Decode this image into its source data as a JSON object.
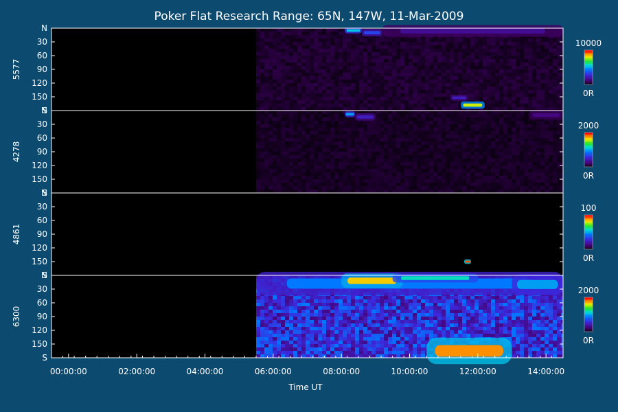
{
  "title": "Poker Flat Research Range: 65N, 147W, 11-Mar-2009",
  "xlabel": "Time UT",
  "colors": {
    "background": "#0d4a70",
    "plot_background": "#000000",
    "separator": "#ffffff"
  },
  "chart_data": {
    "type": "heatmap",
    "title": "Poker Flat Research Range: 65N, 147W, 11-Mar-2009",
    "xlabel": "Time UT",
    "x_ticks": [
      "00:00:00",
      "02:00:00",
      "04:00:00",
      "06:00:00",
      "08:00:00",
      "10:00:00",
      "12:00:00",
      "14:00:00"
    ],
    "x_tick_hours": [
      0,
      2,
      4,
      6,
      8,
      10,
      12,
      14
    ],
    "xlim_hours": [
      -0.5,
      14.5
    ],
    "data_start_hour": 5.5,
    "y_ticks": [
      "N",
      "30",
      "60",
      "90",
      "120",
      "150",
      "S"
    ],
    "y_tick_values": [
      0,
      30,
      60,
      90,
      120,
      150,
      180
    ],
    "ylim": [
      0,
      180
    ],
    "panels": [
      {
        "wavelength": "5577",
        "colorbar": {
          "max": "10000",
          "min": "0R",
          "max_value": 10000
        },
        "background_level": 0.05,
        "features": [
          {
            "t_start": 8.1,
            "t_end": 8.6,
            "y_center": 5,
            "y_width": 4,
            "level": 0.55
          },
          {
            "t_start": 8.6,
            "t_end": 9.2,
            "y_center": 10,
            "y_width": 5,
            "level": 0.35
          },
          {
            "t_start": 9.2,
            "t_end": 14.5,
            "y_center": 6,
            "y_width": 8,
            "level": 0.18
          },
          {
            "t_start": 11.5,
            "t_end": 12.2,
            "y_center": 168,
            "y_width": 5,
            "level": 0.8
          },
          {
            "t_start": 11.2,
            "t_end": 11.7,
            "y_center": 152,
            "y_width": 4,
            "level": 0.25
          }
        ]
      },
      {
        "wavelength": "4278",
        "colorbar": {
          "max": "2000",
          "min": "0R",
          "max_value": 2000
        },
        "background_level": 0.04,
        "features": [
          {
            "t_start": 8.1,
            "t_end": 8.4,
            "y_center": 8,
            "y_width": 4,
            "level": 0.5
          },
          {
            "t_start": 8.4,
            "t_end": 9.0,
            "y_center": 14,
            "y_width": 5,
            "level": 0.25
          },
          {
            "t_start": 13.5,
            "t_end": 14.5,
            "y_center": 10,
            "y_width": 6,
            "level": 0.15
          }
        ]
      },
      {
        "wavelength": "4861",
        "colorbar": {
          "max": "100",
          "min": "0R",
          "max_value": 100
        },
        "background_level": 0.0,
        "features": [
          {
            "t_start": 11.6,
            "t_end": 11.8,
            "y_center": 150,
            "y_width": 3,
            "level": 0.95
          }
        ]
      },
      {
        "wavelength": "6300",
        "colorbar": {
          "max": "2000",
          "min": "0R",
          "max_value": 2000
        },
        "background_level": 0.3,
        "features": [
          {
            "t_start": 5.5,
            "t_end": 14.5,
            "y_center": 18,
            "y_width": 16,
            "level": 0.45
          },
          {
            "t_start": 8.0,
            "t_end": 9.8,
            "y_center": 12,
            "y_width": 10,
            "level": 0.85
          },
          {
            "t_start": 9.5,
            "t_end": 12.0,
            "y_center": 6,
            "y_width": 6,
            "level": 0.6
          },
          {
            "t_start": 13.0,
            "t_end": 14.5,
            "y_center": 20,
            "y_width": 14,
            "level": 0.5
          },
          {
            "t_start": 10.5,
            "t_end": 13.0,
            "y_center": 165,
            "y_width": 18,
            "level": 0.9
          }
        ]
      }
    ]
  }
}
